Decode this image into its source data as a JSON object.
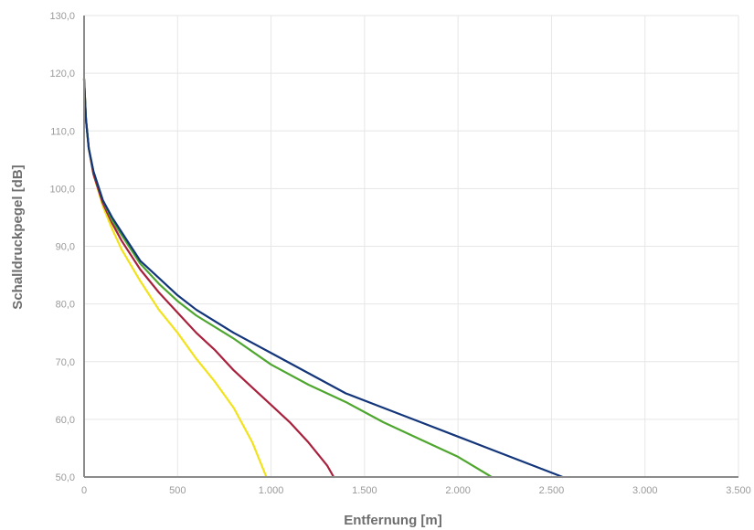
{
  "chart_data": {
    "type": "line",
    "title": "",
    "xlabel": "Entfernung [m]",
    "ylabel": "Schalldruckpegel [dB]",
    "xlim": [
      0,
      3500
    ],
    "ylim": [
      50,
      130
    ],
    "grid": true,
    "x_ticks": [
      0,
      500,
      1000,
      1500,
      2000,
      2500,
      3000,
      3500
    ],
    "x_tick_labels": [
      "0",
      "500",
      "1.000",
      "1.500",
      "2.000",
      "2.500",
      "3.000",
      "3.500"
    ],
    "y_ticks": [
      50,
      60,
      70,
      80,
      90,
      100,
      110,
      120,
      130
    ],
    "y_tick_labels": [
      "50,0",
      "60,0",
      "70,0",
      "80,0",
      "90,0",
      "100,0",
      "110,0",
      "120,0",
      "130,0"
    ],
    "series": [
      {
        "color": "#f2e21a",
        "points": [
          [
            0,
            119
          ],
          [
            10,
            112
          ],
          [
            25,
            107
          ],
          [
            50,
            102.5
          ],
          [
            100,
            97
          ],
          [
            150,
            93
          ],
          [
            200,
            89.5
          ],
          [
            300,
            84
          ],
          [
            400,
            79
          ],
          [
            500,
            75
          ],
          [
            600,
            70.5
          ],
          [
            700,
            66.5
          ],
          [
            800,
            62
          ],
          [
            900,
            56
          ],
          [
            975,
            50
          ]
        ]
      },
      {
        "color": "#a8203c",
        "points": [
          [
            0,
            119
          ],
          [
            10,
            112
          ],
          [
            25,
            107
          ],
          [
            50,
            102.5
          ],
          [
            100,
            97.5
          ],
          [
            150,
            94
          ],
          [
            200,
            91
          ],
          [
            300,
            86
          ],
          [
            400,
            82
          ],
          [
            500,
            78.5
          ],
          [
            600,
            75
          ],
          [
            700,
            72
          ],
          [
            800,
            68.5
          ],
          [
            900,
            65.5
          ],
          [
            1000,
            62.5
          ],
          [
            1100,
            59.5
          ],
          [
            1200,
            56
          ],
          [
            1300,
            52
          ],
          [
            1335,
            50
          ]
        ]
      },
      {
        "color": "#4ea62e",
        "points": [
          [
            0,
            119
          ],
          [
            10,
            112
          ],
          [
            25,
            107
          ],
          [
            50,
            103
          ],
          [
            100,
            98
          ],
          [
            150,
            94.5
          ],
          [
            200,
            92
          ],
          [
            300,
            87
          ],
          [
            400,
            83.5
          ],
          [
            500,
            80.5
          ],
          [
            600,
            78
          ],
          [
            800,
            74
          ],
          [
            1000,
            69.5
          ],
          [
            1200,
            66
          ],
          [
            1400,
            63
          ],
          [
            1600,
            59.5
          ],
          [
            1800,
            56.5
          ],
          [
            2000,
            53.5
          ],
          [
            2180,
            50
          ]
        ]
      },
      {
        "color": "#13357a",
        "points": [
          [
            0,
            119
          ],
          [
            10,
            112
          ],
          [
            25,
            107
          ],
          [
            50,
            103
          ],
          [
            100,
            98
          ],
          [
            150,
            95
          ],
          [
            200,
            92.5
          ],
          [
            300,
            87.5
          ],
          [
            400,
            84.5
          ],
          [
            500,
            81.5
          ],
          [
            600,
            79
          ],
          [
            800,
            75
          ],
          [
            1000,
            71.5
          ],
          [
            1200,
            68
          ],
          [
            1400,
            64.5
          ],
          [
            1600,
            62
          ],
          [
            1800,
            59.5
          ],
          [
            2000,
            57
          ],
          [
            2200,
            54.5
          ],
          [
            2400,
            52
          ],
          [
            2560,
            50
          ]
        ]
      }
    ]
  }
}
